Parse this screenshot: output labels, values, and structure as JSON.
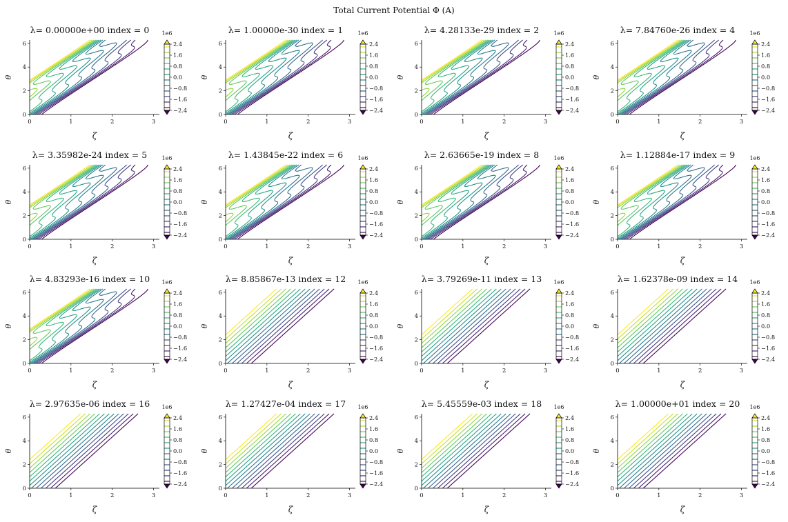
{
  "figure": {
    "suptitle": "Total Current Potential Φ (A)"
  },
  "chart_data": {
    "type": "contour",
    "xlabel": "ζ",
    "ylabel": "θ",
    "xlim": [
      0,
      3.14159
    ],
    "ylim": [
      0,
      6.28319
    ],
    "xticks": [
      "0",
      "1",
      "2",
      "3"
    ],
    "yticks": [
      "0",
      "2",
      "4",
      "6"
    ],
    "colorbar": {
      "ticks": [
        "2.4",
        "1.6",
        "0.8",
        "0.0",
        "−0.8",
        "−1.6",
        "−2.4"
      ],
      "offset_text": "1e6",
      "levels": [
        -2.4,
        -2.0,
        -1.6,
        -1.2,
        -0.8,
        -0.4,
        0.0,
        0.4,
        0.8,
        1.2,
        1.6,
        2.0,
        2.4
      ],
      "colormap": "viridis",
      "extend": "both",
      "upper_extend_color": "#fde725",
      "lower_extend_color": "#440154"
    },
    "panels": [
      {
        "title": "λ=  0.00000e+00 index = 0",
        "regularization": "low"
      },
      {
        "title": "λ=  1.00000e-30 index = 1",
        "regularization": "low"
      },
      {
        "title": "λ=  4.28133e-29 index = 2",
        "regularization": "low"
      },
      {
        "title": "λ=  7.84760e-26 index = 4",
        "regularization": "low"
      },
      {
        "title": "λ=  3.35982e-24 index = 5",
        "regularization": "low"
      },
      {
        "title": "λ=  1.43845e-22 index = 6",
        "regularization": "low"
      },
      {
        "title": "λ=  2.63665e-19 index = 8",
        "regularization": "low"
      },
      {
        "title": "λ=  1.12884e-17 index = 9",
        "regularization": "low"
      },
      {
        "title": "λ=  4.83293e-16 index = 10",
        "regularization": "low"
      },
      {
        "title": "λ=  8.85867e-13 index = 12",
        "regularization": "high"
      },
      {
        "title": "λ=  3.79269e-11 index = 13",
        "regularization": "high"
      },
      {
        "title": "λ=  1.62378e-09 index = 14",
        "regularization": "high"
      },
      {
        "title": "λ=  2.97635e-06 index = 16",
        "regularization": "high"
      },
      {
        "title": "λ=  1.27427e-04 index = 17",
        "regularization": "high"
      },
      {
        "title": "λ=  5.45559e-03 index = 18",
        "regularization": "high"
      },
      {
        "title": "λ=  1.00000e+01 index = 20",
        "regularization": "high"
      }
    ]
  }
}
